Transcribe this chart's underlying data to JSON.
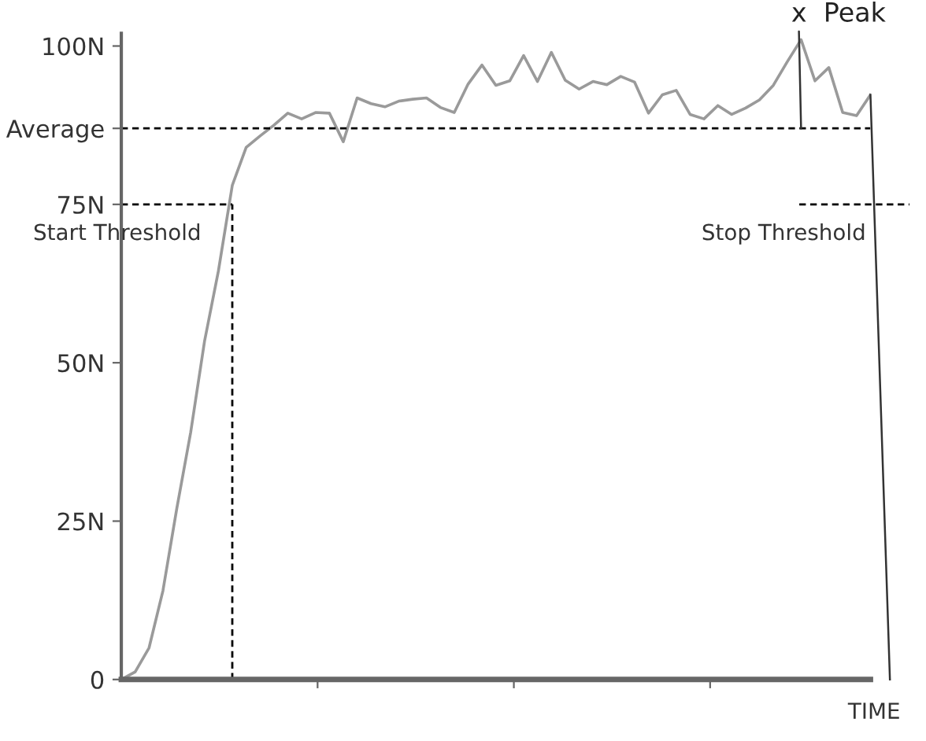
{
  "chart_data": {
    "type": "line",
    "xlabel": "TIME",
    "categories": [
      null,
      null,
      null,
      null,
      null,
      null,
      null,
      null,
      null,
      null,
      null,
      null,
      null,
      null,
      null,
      null,
      null,
      null,
      null,
      null,
      null,
      null,
      null,
      null,
      null,
      null,
      null,
      null,
      null,
      null,
      null,
      null,
      null,
      null,
      null,
      null,
      null,
      null,
      null,
      null,
      null,
      null,
      null,
      null,
      null,
      null,
      null,
      null,
      null,
      null,
      null,
      null,
      null,
      null,
      null
    ],
    "series": [
      {
        "color": "#9a9a9a",
        "values": [
          0,
          1.2,
          5,
          14,
          27,
          39,
          53.4,
          64.5,
          78,
          84,
          85.8,
          87.5,
          89.4,
          88.5,
          89.5,
          89.4,
          84.9,
          91.8,
          90.9,
          90.4,
          91.3,
          91.6,
          91.8,
          90.3,
          89.5,
          94,
          97,
          93.8,
          94.5,
          98.5,
          94.4,
          99,
          94.6,
          93.2,
          94.4,
          93.9,
          95.2,
          94.3,
          89.4,
          92.3,
          93,
          89.2,
          88.5,
          90.6,
          89.2,
          90.2,
          91.5,
          93.8,
          97.5,
          101,
          94.5,
          96.6,
          89.5,
          89,
          92.3
        ]
      }
    ],
    "ylim": [
      0,
      102
    ],
    "yticks": [
      0,
      {
        "value": 25,
        "label": "25N"
      },
      {
        "value": 50,
        "label": "50N"
      },
      {
        "value": 75,
        "label": "75N"
      },
      {
        "value": 87,
        "label": "Average"
      },
      {
        "value": 100,
        "label": "100N"
      }
    ],
    "ref_lines": [
      {
        "axis": "y",
        "value": 75,
        "label": "Start Threshold",
        "color": "#000000",
        "line_style": "dashed"
      },
      {
        "axis": "y",
        "value": 87,
        "color": "#000000",
        "line_style": "dashed"
      }
    ],
    "annotations": [
      "x  Peak",
      "Stop Threshold"
    ],
    "marker": "none",
    "line_style": "solid"
  }
}
